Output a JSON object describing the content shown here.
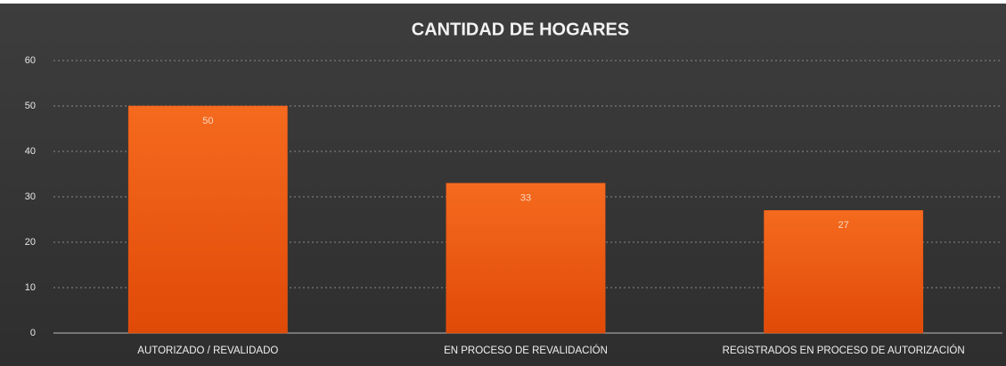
{
  "chart_data": {
    "type": "bar",
    "title": "CANTIDAD DE HOGARES",
    "categories": [
      "AUTORIZADO / REVALIDADO",
      "EN PROCESO DE REVALIDACIÓN",
      "REGISTRADOS EN PROCESO DE AUTORIZACIÓN"
    ],
    "values": [
      50,
      33,
      27
    ],
    "color": "#f05a14",
    "ylim": [
      0,
      60
    ],
    "yticks": [
      0,
      10,
      20,
      30,
      40,
      50,
      60
    ],
    "grid": true
  }
}
